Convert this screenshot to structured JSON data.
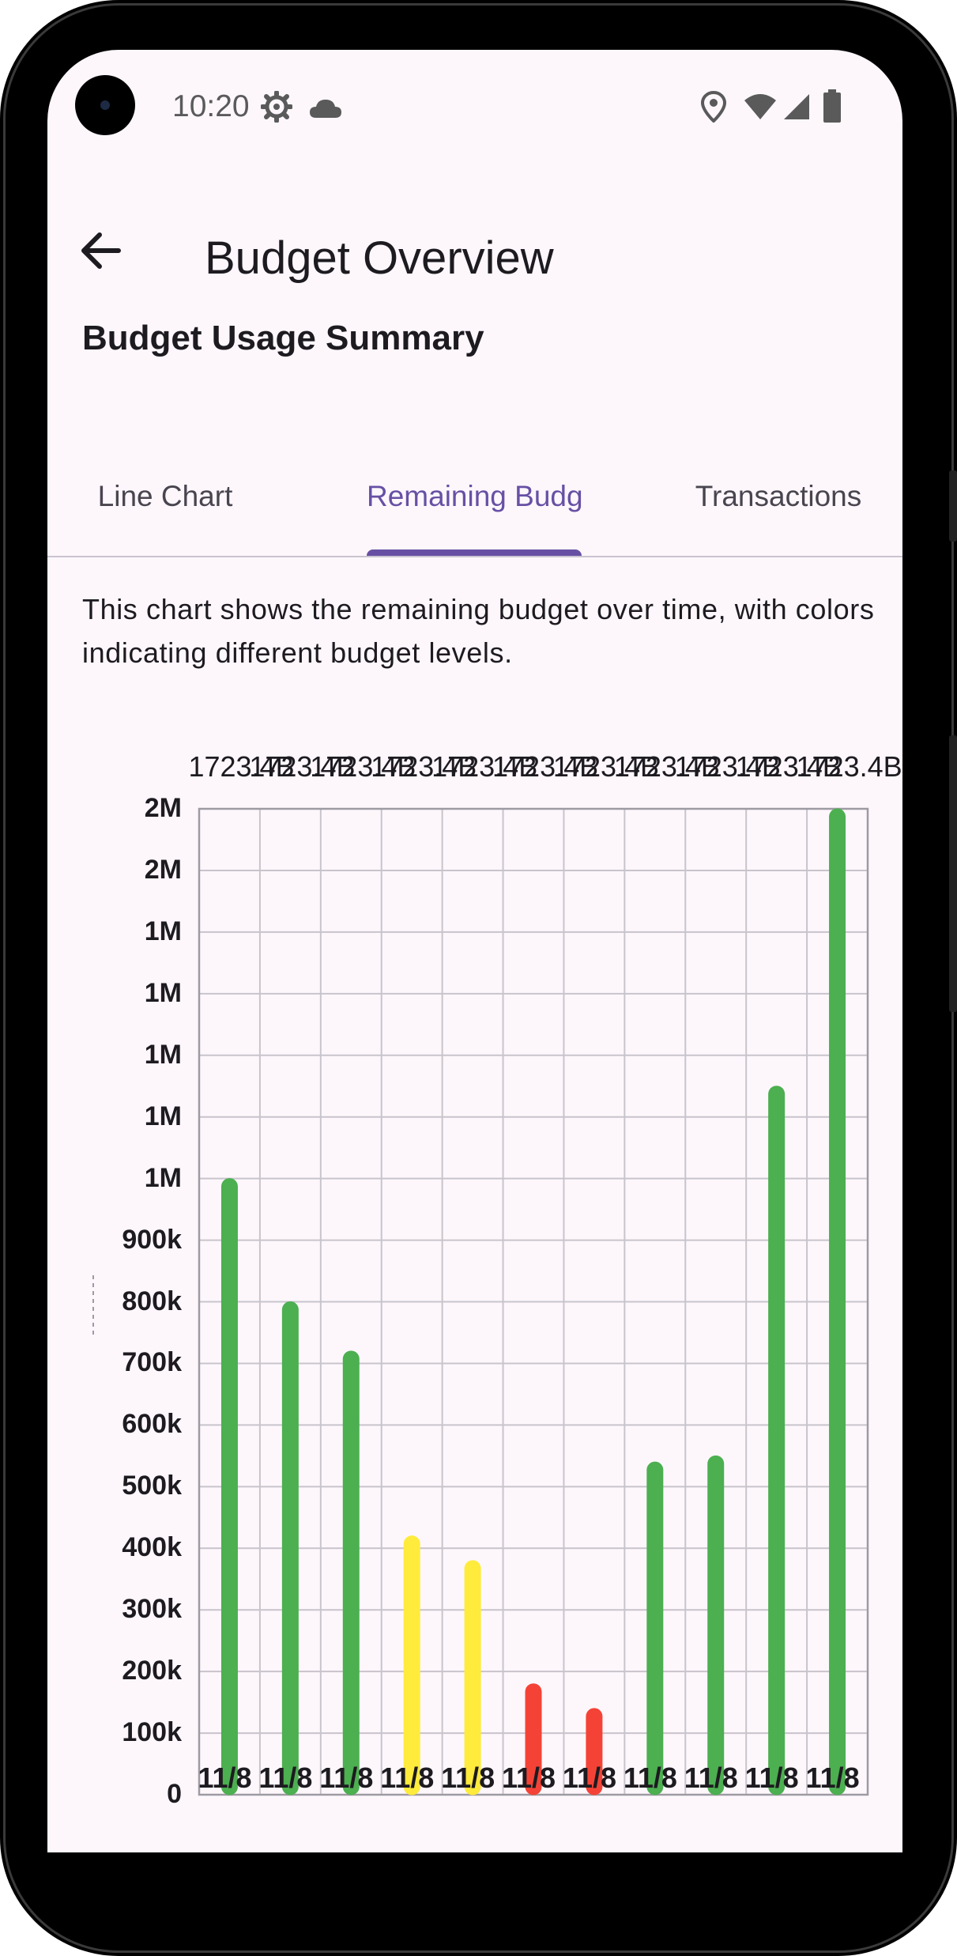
{
  "status_bar": {
    "time": "10:20",
    "left_icons": [
      "settings-gear-icon",
      "cloud-icon"
    ],
    "right_icons": [
      "location-icon",
      "wifi-icon",
      "signal-icon",
      "battery-icon"
    ]
  },
  "app_bar": {
    "back_icon": "arrow-back-icon",
    "title": "Budget Overview"
  },
  "section_title": "Budget Usage Summary",
  "tabs": [
    {
      "label": "Line Chart",
      "active": false
    },
    {
      "label": "Remaining Budget",
      "active": true
    },
    {
      "label": "Transactions",
      "active": false
    }
  ],
  "description": "This chart shows the remaining budget over time, with colors indicating different budget levels.",
  "colors": {
    "accent": "#6750a4",
    "high": "#4caf50",
    "medium": "#ffeb3b",
    "low": "#f44336",
    "grid": "#c8c4cc"
  },
  "chart_data": {
    "type": "bar",
    "top_labels": [
      "1723.4B",
      "1723.4B",
      "1723.4B",
      "1723.4B",
      "1723.4B",
      "1723.4B",
      "1723.4B",
      "1723.4B",
      "1723.4B",
      "1723.4B",
      "1723.4B"
    ],
    "categories": [
      "11/8",
      "11/8",
      "11/8",
      "11/8",
      "11/8",
      "11/8",
      "11/8",
      "11/8",
      "11/8",
      "11/8",
      "11/8"
    ],
    "values": [
      1000000,
      800000,
      720000,
      420000,
      380000,
      180000,
      140000,
      540000,
      550000,
      1150000,
      1600000
    ],
    "bar_colors": [
      "#4caf50",
      "#4caf50",
      "#4caf50",
      "#ffeb3b",
      "#ffeb3b",
      "#f44336",
      "#f44336",
      "#4caf50",
      "#4caf50",
      "#4caf50",
      "#4caf50"
    ],
    "y_tick_labels": [
      "0",
      "100k",
      "200k",
      "300k",
      "400k",
      "500k",
      "600k",
      "700k",
      "800k",
      "900k",
      "1M",
      "1M",
      "1M",
      "1M",
      "1M",
      "2M",
      "2M"
    ],
    "ylim": [
      0,
      1600000
    ],
    "grid": true
  }
}
